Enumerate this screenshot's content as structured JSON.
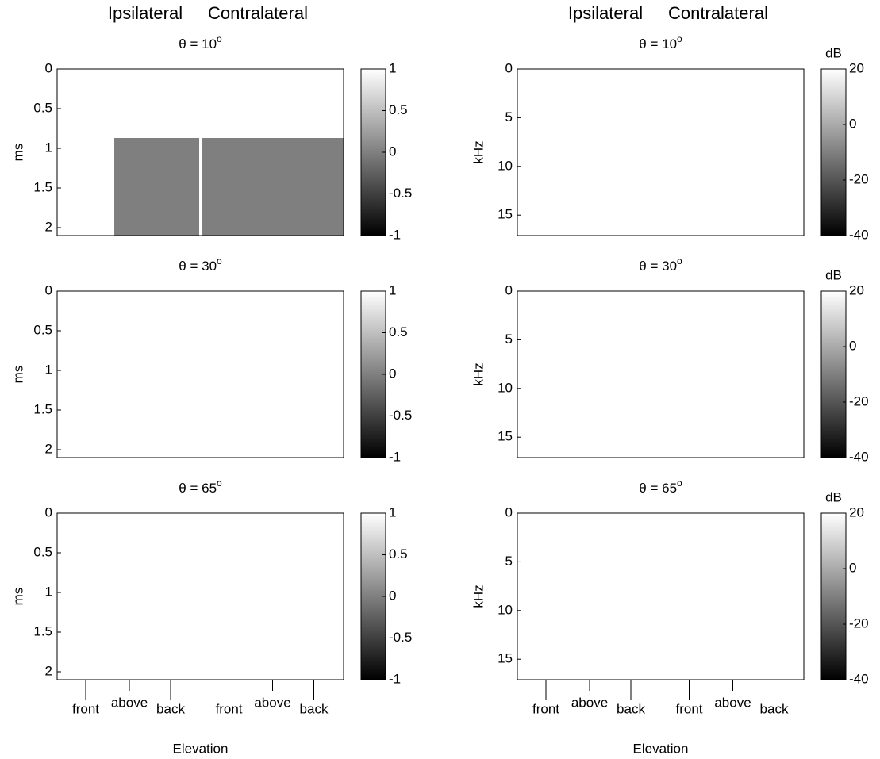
{
  "figure": {
    "left": {
      "headers": [
        "Ipsilateral",
        "Contralateral"
      ],
      "ylabel": "ms",
      "ylim": [
        0,
        2.1
      ],
      "yticks": [
        0,
        0.5,
        1,
        1.5,
        2
      ],
      "colorbar": {
        "lim": [
          -1,
          1
        ],
        "ticks": [
          1,
          0.5,
          0,
          -0.5,
          -1
        ]
      },
      "panels": [
        {
          "title": "θ = 10",
          "sup": "o"
        },
        {
          "title": "θ = 30",
          "sup": "o"
        },
        {
          "title": "θ = 65",
          "sup": "o"
        }
      ],
      "elevation": [
        "front",
        "above",
        "back"
      ],
      "xlabel": "Elevation"
    },
    "right": {
      "headers": [
        "Ipsilateral",
        "Contralateral"
      ],
      "ylabel": "kHz",
      "ylim": [
        0,
        17.1
      ],
      "yticks": [
        0,
        5,
        10,
        15
      ],
      "colorbar": {
        "label": "dB",
        "lim": [
          -40,
          20
        ],
        "ticks": [
          20,
          0,
          -20,
          -40
        ]
      },
      "panels": [
        {
          "title": "θ = 10",
          "sup": "o"
        },
        {
          "title": "θ = 30",
          "sup": "o"
        },
        {
          "title": "θ = 65",
          "sup": "o"
        }
      ],
      "elevation": [
        "front",
        "above",
        "back"
      ],
      "xlabel": "Elevation"
    }
  }
}
